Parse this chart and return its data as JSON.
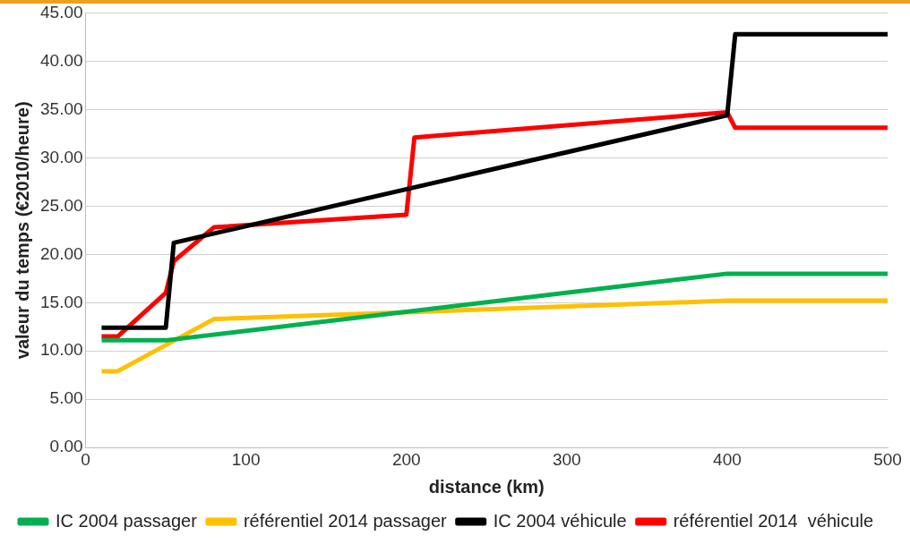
{
  "chart_data": {
    "type": "line",
    "xlabel": "distance (km)",
    "ylabel": "valeur du temps (€2010/heure)",
    "xlim": [
      0,
      500
    ],
    "xticks": [
      0,
      100,
      200,
      300,
      400,
      500
    ],
    "ylim": [
      0,
      45
    ],
    "yticks": [
      {
        "value": 0,
        "label": "0.00"
      },
      {
        "value": 5,
        "label": "5.00"
      },
      {
        "value": 10,
        "label": "10.00"
      },
      {
        "value": 15,
        "label": "15.00"
      },
      {
        "value": 20,
        "label": "20.00"
      },
      {
        "value": 25,
        "label": "25.00"
      },
      {
        "value": 30,
        "label": "30.00"
      },
      {
        "value": 35,
        "label": "35.00"
      },
      {
        "value": 40,
        "label": "40.00"
      },
      {
        "value": 45,
        "label": "45.00"
      }
    ],
    "grid": "y",
    "legend": "bottom",
    "marker": "none",
    "series": [
      {
        "name": "IC 2004 passager",
        "color": "#00b050",
        "x": [
          10,
          50,
          400,
          500
        ],
        "values": [
          11.1,
          11.1,
          18.0,
          18.0
        ]
      },
      {
        "name": "référentiel 2014 passager",
        "color": "#ffc000",
        "x": [
          10,
          20,
          80,
          200,
          400,
          500
        ],
        "values": [
          7.9,
          7.9,
          13.3,
          14.0,
          15.2,
          15.2
        ]
      },
      {
        "name": "IC 2004 véhicule",
        "color": "#000000",
        "x": [
          10,
          50,
          55,
          400,
          405,
          500
        ],
        "values": [
          12.4,
          12.4,
          21.2,
          34.4,
          42.8,
          42.8
        ]
      },
      {
        "name": "référentiel 2014  véhicule",
        "color": "#ff0000",
        "x": [
          10,
          20,
          50,
          55,
          80,
          200,
          205,
          400,
          405,
          500
        ],
        "values": [
          11.5,
          11.5,
          16.0,
          19.3,
          22.8,
          24.1,
          32.1,
          34.7,
          33.1,
          33.1
        ]
      }
    ]
  }
}
